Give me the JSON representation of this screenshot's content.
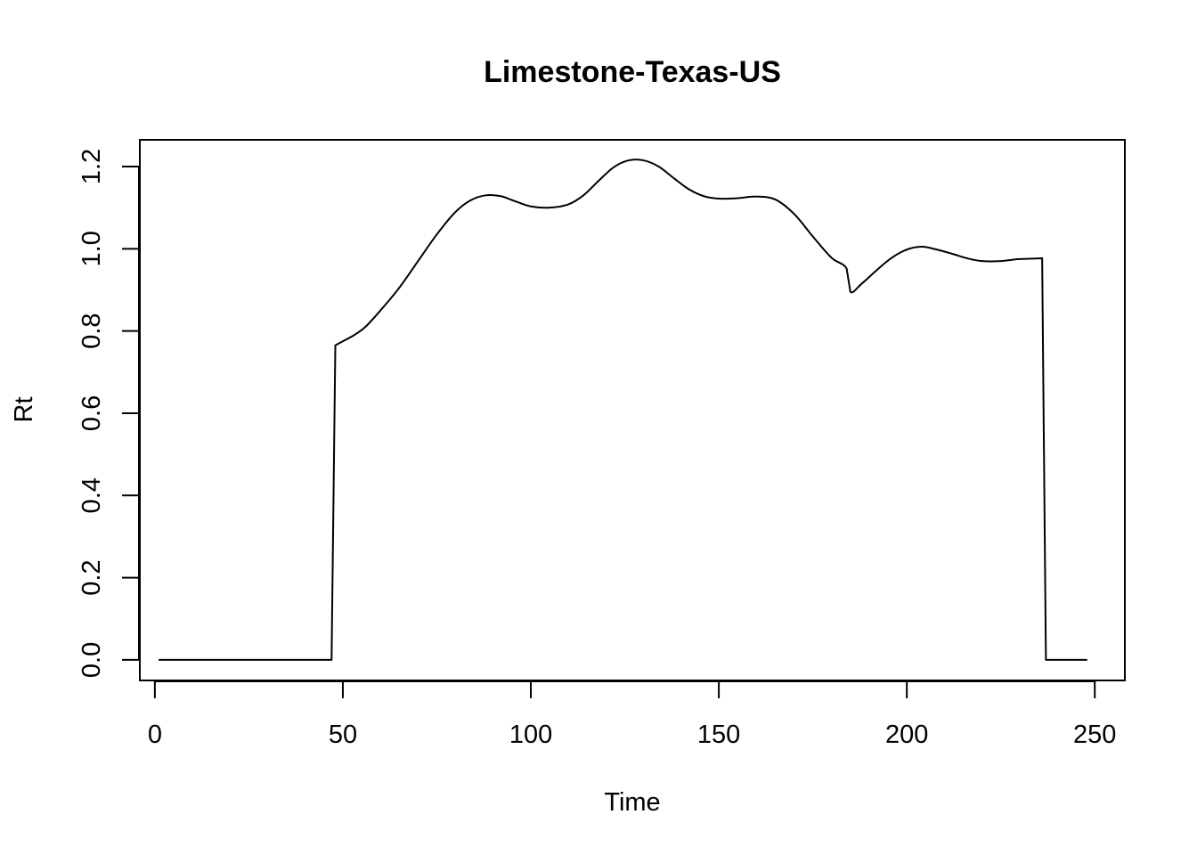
{
  "chart_data": {
    "type": "line",
    "title": "Limestone-Texas-US",
    "xlabel": "Time",
    "ylabel": "Rt",
    "xlim": [
      -4,
      258
    ],
    "ylim": [
      -0.05,
      1.265
    ],
    "xticks": [
      0,
      50,
      100,
      150,
      200,
      250
    ],
    "yticks": [
      0.0,
      0.2,
      0.4,
      0.6,
      0.8,
      1.0,
      1.2
    ],
    "grid": false,
    "legend": "none",
    "series": [
      {
        "color": "#000000",
        "x": [
          1,
          47,
          48,
          50,
          53,
          56,
          60,
          65,
          70,
          75,
          80,
          84,
          88,
          92,
          96,
          100,
          105,
          110,
          114,
          118,
          122,
          126,
          130,
          134,
          138,
          142,
          146,
          150,
          155,
          160,
          165,
          170,
          175,
          180,
          184,
          185,
          188,
          192,
          196,
          200,
          204,
          208,
          212,
          216,
          220,
          225,
          230,
          236,
          237,
          248
        ],
        "y": [
          0,
          0,
          0.765,
          0.775,
          0.79,
          0.81,
          0.85,
          0.905,
          0.97,
          1.035,
          1.09,
          1.118,
          1.13,
          1.128,
          1.115,
          1.103,
          1.1,
          1.108,
          1.13,
          1.165,
          1.198,
          1.215,
          1.215,
          1.2,
          1.172,
          1.145,
          1.128,
          1.122,
          1.123,
          1.127,
          1.12,
          1.085,
          1.03,
          0.978,
          0.952,
          0.895,
          0.915,
          0.948,
          0.978,
          0.998,
          1.005,
          0.998,
          0.988,
          0.977,
          0.97,
          0.97,
          0.975,
          0.977,
          0,
          0
        ]
      }
    ]
  }
}
